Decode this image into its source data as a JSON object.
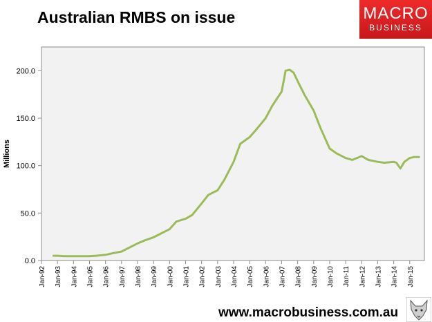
{
  "header": {
    "title": "Australian RMBS on issue"
  },
  "logo": {
    "line1": "MACRO",
    "line2": "BUSINESS",
    "color": "#d91f22"
  },
  "footer": {
    "url": "www.macrobusiness.com.au"
  },
  "chart_data": {
    "type": "line",
    "title": "Australian RMBS on issue",
    "ylabel": "Millions",
    "xlabel": "",
    "ylim": [
      0,
      225
    ],
    "yticks": [
      0,
      50,
      100,
      150,
      200
    ],
    "ytick_labels": [
      "0.0",
      "50.0",
      "100.0",
      "150.0",
      "200.0"
    ],
    "xlim": [
      "1992-01",
      "2015-12"
    ],
    "xticks": [
      "1992-01",
      "1993-01",
      "1994-01",
      "1995-01",
      "1996-01",
      "1997-01",
      "1998-01",
      "1999-01",
      "2000-01",
      "2001-01",
      "2002-01",
      "2003-01",
      "2004-01",
      "2005-01",
      "2006-01",
      "2007-01",
      "2008-01",
      "2009-01",
      "2010-01",
      "2011-01",
      "2012-01",
      "2013-01",
      "2014-01",
      "2015-01"
    ],
    "xtick_labels": [
      "Jan-92",
      "Jan-93",
      "Jan-94",
      "Jan-95",
      "Jan-96",
      "Jan-97",
      "Jan-98",
      "Jan-99",
      "Jan-00",
      "Jan-01",
      "Jan-02",
      "Jan-03",
      "Jan-04",
      "Jan-05",
      "Jan-06",
      "Jan-07",
      "Jan-08",
      "Jan-09",
      "Jan-10",
      "Jan-11",
      "Jan-12",
      "Jan-13",
      "Jan-14",
      "Jan-15"
    ],
    "grid": false,
    "plot_background": "#f2f2f2",
    "line_color": "#9bbb59",
    "x": [
      "1992-10",
      "1993-01",
      "1993-06",
      "1994-01",
      "1994-06",
      "1995-01",
      "1995-06",
      "1996-01",
      "1996-06",
      "1997-01",
      "1997-06",
      "1998-01",
      "1998-06",
      "1999-01",
      "1999-06",
      "2000-01",
      "2000-06",
      "2001-01",
      "2001-06",
      "2002-01",
      "2002-06",
      "2003-01",
      "2003-06",
      "2004-01",
      "2004-06",
      "2005-01",
      "2005-06",
      "2006-01",
      "2006-06",
      "2007-01",
      "2007-04",
      "2007-07",
      "2007-10",
      "2008-01",
      "2008-06",
      "2009-01",
      "2009-06",
      "2010-01",
      "2010-06",
      "2011-01",
      "2011-06",
      "2012-01",
      "2012-06",
      "2013-01",
      "2013-06",
      "2014-01",
      "2014-03",
      "2014-06",
      "2014-09",
      "2015-01",
      "2015-04",
      "2015-08"
    ],
    "y": [
      5,
      5,
      4.5,
      4.5,
      4.5,
      4.5,
      5,
      6,
      7.5,
      9.5,
      13,
      18,
      21,
      24.5,
      28,
      33,
      41,
      44,
      48,
      60,
      69,
      74,
      85,
      104,
      123,
      130,
      138,
      150,
      163,
      178,
      200,
      201,
      198,
      189,
      175,
      158,
      140,
      118,
      113,
      108,
      106,
      110,
      106,
      104,
      103,
      104,
      103,
      97,
      104,
      108,
      109,
      109
    ]
  }
}
